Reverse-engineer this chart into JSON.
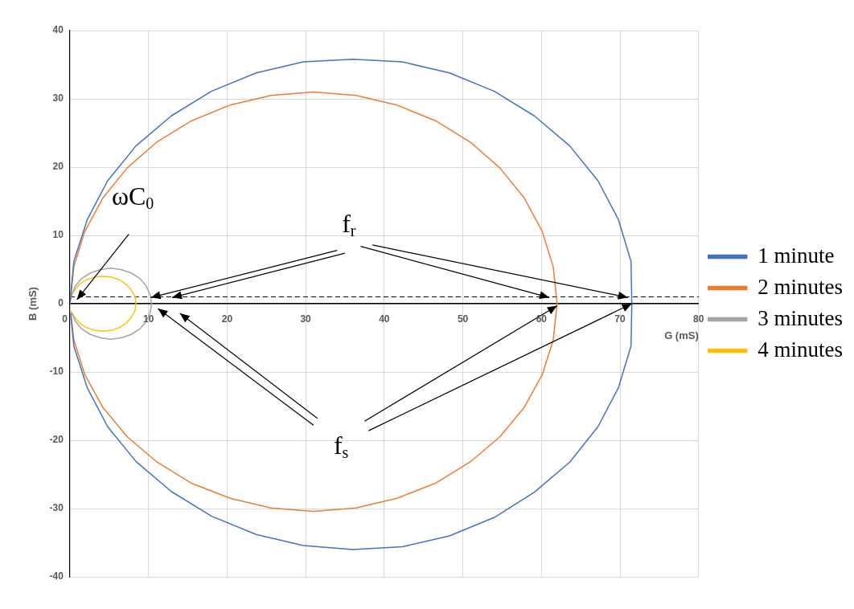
{
  "chart_data": {
    "type": "line",
    "xlabel": "G (mS)",
    "ylabel": "B (mS)",
    "xlim": [
      0,
      80
    ],
    "ylim": [
      -40,
      40
    ],
    "xticks": [
      0,
      10,
      20,
      30,
      40,
      50,
      60,
      70,
      80
    ],
    "yticks": [
      -40,
      -30,
      -20,
      -10,
      0,
      10,
      20,
      30,
      40
    ],
    "grid": true,
    "legend": "right",
    "marker": "none",
    "line_style": "solid",
    "series": [
      {
        "name": "1 minute",
        "color": "#4472c4",
        "x": [
          0,
          0.5,
          2.2,
          4.8,
          8.4,
          12.9,
          18,
          23.7,
          29.7,
          36,
          42.3,
          48.3,
          54,
          59.1,
          63.6,
          67.2,
          69.8,
          71.4,
          71.5,
          71.4,
          69.8,
          67.2,
          63.6,
          59.1,
          54,
          48.3,
          42.3,
          36,
          29.7,
          23.7,
          18,
          12.9,
          8.4,
          4.8,
          2.2,
          0.5,
          0.1
        ],
        "values": [
          0,
          6.2,
          12.3,
          18,
          23.1,
          27.5,
          31.1,
          33.8,
          35.4,
          35.8,
          35.4,
          33.8,
          31.1,
          27.5,
          23.1,
          18,
          12.3,
          6.2,
          0,
          -6.2,
          -12.3,
          -18,
          -23.2,
          -27.6,
          -31.3,
          -34,
          -35.6,
          -36,
          -35.4,
          -33.8,
          -31.1,
          -27.5,
          -23.1,
          -18,
          -12.3,
          -6.2,
          -1.5
        ]
      },
      {
        "name": "2 minutes",
        "color": "#ed7d31",
        "x": [
          0,
          0.5,
          1.9,
          4.2,
          7.3,
          11.1,
          15.5,
          20.4,
          25.6,
          31,
          36.4,
          41.6,
          46.5,
          50.9,
          54.7,
          57.8,
          60.1,
          61.5,
          62,
          61.5,
          60.1,
          57.8,
          54.7,
          50.9,
          46.5,
          41.6,
          36.4,
          31,
          25.6,
          20.4,
          15.5,
          11.1,
          7.3,
          4.2,
          1.9,
          0.5,
          0.1
        ],
        "values": [
          0,
          5.4,
          10.6,
          15.5,
          19.9,
          23.7,
          26.8,
          29.1,
          30.5,
          31,
          30.5,
          29.1,
          26.8,
          23.7,
          19.9,
          15.5,
          10.6,
          5.4,
          0,
          -5.3,
          -10.4,
          -15.2,
          -19.5,
          -23.2,
          -26.3,
          -28.5,
          -29.9,
          -30.4,
          -29.9,
          -28.5,
          -26.3,
          -23.2,
          -19.5,
          -15.2,
          -10.4,
          -5.3,
          -1.3
        ]
      },
      {
        "name": "3 minutes",
        "color": "#a5a5a5",
        "x": [
          0,
          0.2,
          0.7,
          1.5,
          2.6,
          3.9,
          5.2,
          6.5,
          7.8,
          8.9,
          9.7,
          10.2,
          10.4,
          10.2,
          9.7,
          8.9,
          7.8,
          6.5,
          5.2,
          3.9,
          2.6,
          1.5,
          0.7,
          0.2
        ],
        "values": [
          0,
          1.3,
          2.6,
          3.7,
          4.5,
          5,
          5.2,
          5,
          4.5,
          3.7,
          2.6,
          1.3,
          0,
          -1.3,
          -2.6,
          -3.7,
          -4.5,
          -5,
          -5.2,
          -5,
          -4.5,
          -3.7,
          -2.6,
          -1.3
        ]
      },
      {
        "name": "4 minutes",
        "color": "#ffc000",
        "x": [
          0,
          0.1,
          0.6,
          1.2,
          2.1,
          3.1,
          4.2,
          5.3,
          6.3,
          7.2,
          7.8,
          8.3,
          8.4,
          8.3,
          7.8,
          7.2,
          6.3,
          5.3,
          4.2,
          3.1,
          2.1,
          1.2,
          0.6,
          0.1
        ],
        "values": [
          0,
          1,
          2,
          2.8,
          3.5,
          3.9,
          4,
          3.9,
          3.5,
          2.8,
          2,
          1,
          0,
          -1,
          -2,
          -2.8,
          -3.5,
          -3.9,
          -4,
          -3.9,
          -3.5,
          -2.8,
          -2,
          -1
        ]
      }
    ],
    "ref_lines": [
      {
        "axis": "y",
        "value": 1,
        "color": "#000000",
        "line_style": "dashed"
      }
    ],
    "annotations": [
      {
        "text": "f$_{r}$",
        "x": 10.3,
        "y": 0.9
      },
      {
        "text": "f$_{s}$",
        "x": 71.5,
        "y": 0
      },
      {
        "text": "ωC$_{0}$",
        "x": 0.9,
        "y": 0.6
      }
    ]
  }
}
